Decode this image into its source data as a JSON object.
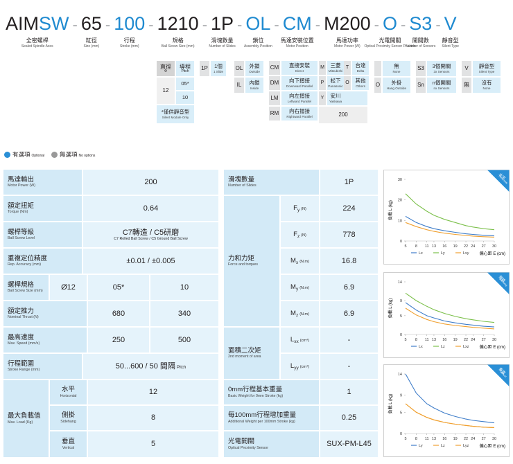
{
  "code": {
    "separator": "-",
    "segments": [
      {
        "parts": [
          {
            "text": "AIM",
            "color": "#231f20"
          },
          {
            "text": "SW",
            "color": "#1f8ad0"
          }
        ],
        "zh": "全密螺桿",
        "en": "Sealed Spindle Axes"
      },
      {
        "parts": [
          {
            "text": "65",
            "color": "#231f20"
          }
        ],
        "zh": "缸徑",
        "en": "Size (mm)"
      },
      {
        "parts": [
          {
            "text": "100",
            "color": "#1f8ad0"
          }
        ],
        "zh": "行程",
        "en": "Stroke (mm)"
      },
      {
        "parts": [
          {
            "text": "1210",
            "color": "#231f20"
          }
        ],
        "zh": "規格",
        "en": "Ball Screw Size (mm)"
      },
      {
        "parts": [
          {
            "text": "1P",
            "color": "#231f20"
          }
        ],
        "zh": "滑塊數量",
        "en": "Number of Slides"
      },
      {
        "parts": [
          {
            "text": "OL",
            "color": "#1f8ad0"
          }
        ],
        "zh": "鎖位",
        "en": "Assembly Position"
      },
      {
        "parts": [
          {
            "text": "CM",
            "color": "#1f8ad0"
          }
        ],
        "zh": "馬達安裝位置",
        "en": "Motor Position"
      },
      {
        "parts": [
          {
            "text": "M200",
            "color": "#231f20"
          }
        ],
        "zh": "馬達功率",
        "en": "Motor Power (W)"
      },
      {
        "parts": [
          {
            "text": "O",
            "color": "#1f8ad0"
          }
        ],
        "zh": "光電開關",
        "en": "Optical Proximity Sensor Position"
      },
      {
        "parts": [
          {
            "text": "S3",
            "color": "#1f8ad0"
          }
        ],
        "zh": "開關數",
        "en": "Number of Sensors"
      },
      {
        "parts": [
          {
            "text": "V",
            "color": "#1f8ad0"
          }
        ],
        "zh": "靜音型",
        "en": "Silent Type"
      }
    ]
  },
  "options": {
    "spec": {
      "head": [
        "直徑",
        "導程"
      ],
      "head_en": [
        "Φ",
        "Pitch"
      ],
      "diameter": 12,
      "pitches": [
        "05*",
        10
      ],
      "note": "*僅供靜音型",
      "note_en": "Silent Module Only"
    },
    "slides": [
      {
        "code": "1P",
        "zh": "1個",
        "en": "1 Slide"
      }
    ],
    "lock": [
      {
        "code": "OL",
        "zh": "外鎖",
        "en": "Outside"
      },
      {
        "code": "IL",
        "zh": "內鎖",
        "en": "Inside"
      }
    ],
    "motor_position": [
      {
        "code": "CM",
        "zh": "直接安裝",
        "en": "Direct"
      },
      {
        "code": "DM",
        "zh": "向下摺接",
        "en": "Downward Parallel"
      },
      {
        "code": "LM",
        "zh": "向左摺接",
        "en": "Leftward Parallel"
      },
      {
        "code": "RM",
        "zh": "向右摺接",
        "en": "Rightward Parallel"
      }
    ],
    "motor_brand": [
      {
        "code": "M",
        "zh": "三菱",
        "en": "Mitsubishi"
      },
      {
        "code": "T",
        "zh": "台達",
        "en": "Delta"
      },
      {
        "code": "P",
        "zh": "松下",
        "en": "Panasonic"
      },
      {
        "code": "O",
        "zh": "其他",
        "en": "Others"
      },
      {
        "code": "Y",
        "zh": "安川",
        "en": "Yaskawa"
      }
    ],
    "motor_power": 200,
    "sensor": [
      {
        "zh": "無",
        "en": "None"
      },
      {
        "code": "O",
        "zh": "外掛",
        "en": "Hang Outside"
      }
    ],
    "count": [
      {
        "code": "S3",
        "zh": "3個開關",
        "en": "3x Sensors"
      },
      {
        "code": "Sn",
        "zh": "n個開關",
        "en": "nx Sensors"
      }
    ],
    "silent": [
      {
        "code": "V",
        "zh": "靜音型",
        "en": "Silent Type"
      },
      {
        "code": "無",
        "zh": "沒有",
        "en": "None"
      }
    ]
  },
  "legend": [
    {
      "zh": "有選項",
      "en": "Optional",
      "color": "#2a8fd6"
    },
    {
      "zh": "無選項",
      "en": "No options",
      "color": "#999999"
    }
  ],
  "specs": {
    "rows": [
      {
        "label": "馬達輸出",
        "label_en": "Motor Power (W)",
        "cells": [
          {
            "value": 200
          }
        ]
      },
      {
        "label": "額定扭矩",
        "label_en": "Torque (Nm)",
        "cells": [
          {
            "value": 0.64
          }
        ]
      },
      {
        "label": "螺桿等級",
        "label_en": "Ball Screw Level",
        "cells": [
          {
            "value": "C7轉造 / C5研磨",
            "value_en": "C7 Rolled Ball Screw / C5 Ground Ball Screw"
          }
        ]
      },
      {
        "label": "重複定位精度",
        "label_en": "Rep. Accuracy (mm)",
        "cells": [
          {
            "value": "±0.01 / ±0.005"
          }
        ]
      },
      {
        "label": "螺桿規格",
        "label_en": "Ball Screw Size (mm)",
        "cells": [
          {
            "value": "Ø12"
          },
          {
            "value": "05*"
          },
          {
            "value": 10
          }
        ]
      },
      {
        "label": "額定推力",
        "label_en": "Nominal Thrust (N)",
        "cells": [
          {
            "value": 680
          },
          {
            "value": 340
          }
        ]
      },
      {
        "label": "最高速度",
        "label_en": "Max. Speed (mm/s)",
        "cells": [
          {
            "value": 250
          },
          {
            "value": 500
          }
        ]
      },
      {
        "label": "行程範圍",
        "label_en": "Stroke Range (mm)",
        "cells": [
          {
            "value": "50...600 / 50 間隔",
            "value_en": "Pitch"
          }
        ]
      }
    ],
    "max_load": {
      "label": "最大負載值",
      "label_en": "Max. Load (Kg)",
      "items": [
        {
          "label": "水平",
          "label_en": "Horizontal",
          "value": 12
        },
        {
          "label": "側掛",
          "label_en": "Sidehang",
          "value": 8
        },
        {
          "label": "垂直",
          "label_en": "Vertical",
          "value": 5
        }
      ]
    }
  },
  "forces": {
    "slides": {
      "label": "滑塊數量",
      "label_en": "Number of Slides",
      "value": "1P"
    },
    "force_group": {
      "label": "力和力矩",
      "label_en": "Force and torques",
      "items": [
        {
          "symbol": "F",
          "sub": "y",
          "unit": "(N)",
          "value": 224
        },
        {
          "symbol": "F",
          "sub": "z",
          "unit": "(N)",
          "value": 778
        },
        {
          "symbol": "M",
          "sub": "x",
          "unit": "(N.m)",
          "value": 16.8
        },
        {
          "symbol": "M",
          "sub": "y",
          "unit": "(N.m)",
          "value": 6.9
        },
        {
          "symbol": "M",
          "sub": "z",
          "unit": "(N.m)",
          "value": 6.9
        }
      ]
    },
    "area_group": {
      "label": "面積二次矩",
      "label_en": "2nd moment of area",
      "items": [
        {
          "symbol": "L",
          "sub": "xx",
          "unit": "(cm⁴)",
          "value": "-"
        },
        {
          "symbol": "L",
          "sub": "yy",
          "unit": "(cm⁴)",
          "value": "-"
        }
      ]
    },
    "rows": [
      {
        "label": "0mm行程基本重量",
        "label_en": "Basic Weight for 0mm Stroke (kg)",
        "value": 1
      },
      {
        "label": "每100mm行程增加重量",
        "label_en": "Additional Weight per 100mm Stroke (kg)",
        "value": 0.25
      },
      {
        "label": "光電開關",
        "label_en": "Optical Proximity Sensor",
        "value": "SUX-PM-L45"
      }
    ]
  },
  "charts": [
    {
      "type": "line",
      "badge": "水平",
      "badge_en": "Horizontal",
      "y_label": "負載 L (kg)",
      "x_label": "偏心距 E (cm)",
      "x": [
        5,
        8,
        11,
        13,
        16,
        19,
        22,
        24,
        27,
        30
      ],
      "xticks": [
        5,
        8,
        11,
        13,
        16,
        19,
        22,
        24,
        27,
        30
      ],
      "xlim": [
        5,
        30
      ],
      "ylim": [
        0,
        30
      ],
      "yticks": [
        0,
        10,
        20,
        30
      ],
      "series": [
        {
          "name": "Lx",
          "color": "#3d7cc9",
          "values": [
            12,
            9,
            7,
            6,
            5,
            4.2,
            3.5,
            3.2,
            2.8,
            2.5
          ]
        },
        {
          "name": "Ly",
          "color": "#7cc04b",
          "values": [
            23,
            18,
            14.5,
            12.5,
            10.5,
            9,
            7.5,
            6.8,
            6,
            5.5
          ]
        },
        {
          "name": "Lxy",
          "color": "#f0a030",
          "values": [
            9,
            7,
            5.5,
            4.7,
            3.8,
            3.2,
            2.7,
            2.4,
            2.1,
            1.9
          ]
        }
      ]
    },
    {
      "type": "line",
      "badge": "側掛",
      "badge_en": "Sidehang",
      "y_label": "負載 L (kg)",
      "x_label": "偏心距 E (cm)",
      "x": [
        5,
        8,
        11,
        13,
        16,
        19,
        22,
        24,
        27,
        30
      ],
      "xticks": [
        5,
        8,
        11,
        13,
        16,
        19,
        22,
        24,
        27,
        30
      ],
      "xlim": [
        5,
        30
      ],
      "ylim": [
        0,
        14
      ],
      "yticks": [
        0,
        5,
        9,
        14
      ],
      "series": [
        {
          "name": "Lx",
          "color": "#3d7cc9",
          "values": [
            8.5,
            6.5,
            5,
            4.4,
            3.6,
            3.1,
            2.7,
            2.5,
            2.2,
            2
          ]
        },
        {
          "name": "Lz",
          "color": "#7cc04b",
          "values": [
            11,
            9,
            7.5,
            6.6,
            5.6,
            4.8,
            4.2,
            3.9,
            3.5,
            3.2
          ]
        },
        {
          "name": "Lxz",
          "color": "#f0a030",
          "values": [
            7,
            5.2,
            4,
            3.4,
            2.8,
            2.4,
            2.1,
            1.9,
            1.7,
            1.5
          ]
        }
      ]
    },
    {
      "type": "line",
      "badge": "垂直",
      "badge_en": "Vertical",
      "y_label": "負載 L (kg)",
      "x_label": "偏心距 E (cm)",
      "x": [
        5,
        8,
        11,
        13,
        16,
        19,
        22,
        24,
        27,
        30
      ],
      "xticks": [
        5,
        8,
        11,
        13,
        16,
        19,
        22,
        24,
        27,
        30
      ],
      "xlim": [
        5,
        30
      ],
      "ylim": [
        0,
        14
      ],
      "yticks": [
        0,
        5,
        9,
        14
      ],
      "series": [
        {
          "name": "Ly",
          "color": "#3d7cc9",
          "values": [
            14,
            9.5,
            7,
            6,
            4.8,
            4,
            3.4,
            3.1,
            2.8,
            2.5
          ]
        },
        {
          "name": "Lz",
          "color": "#f0a030",
          "values": [
            7,
            5,
            3.8,
            3.2,
            2.6,
            2.2,
            1.9,
            1.7,
            1.5,
            1.4
          ]
        },
        {
          "name": "Lyz",
          "color": "#f0a030",
          "values": [
            7,
            5,
            3.8,
            3.2,
            2.6,
            2.2,
            1.9,
            1.7,
            1.5,
            1.4
          ]
        }
      ]
    }
  ]
}
